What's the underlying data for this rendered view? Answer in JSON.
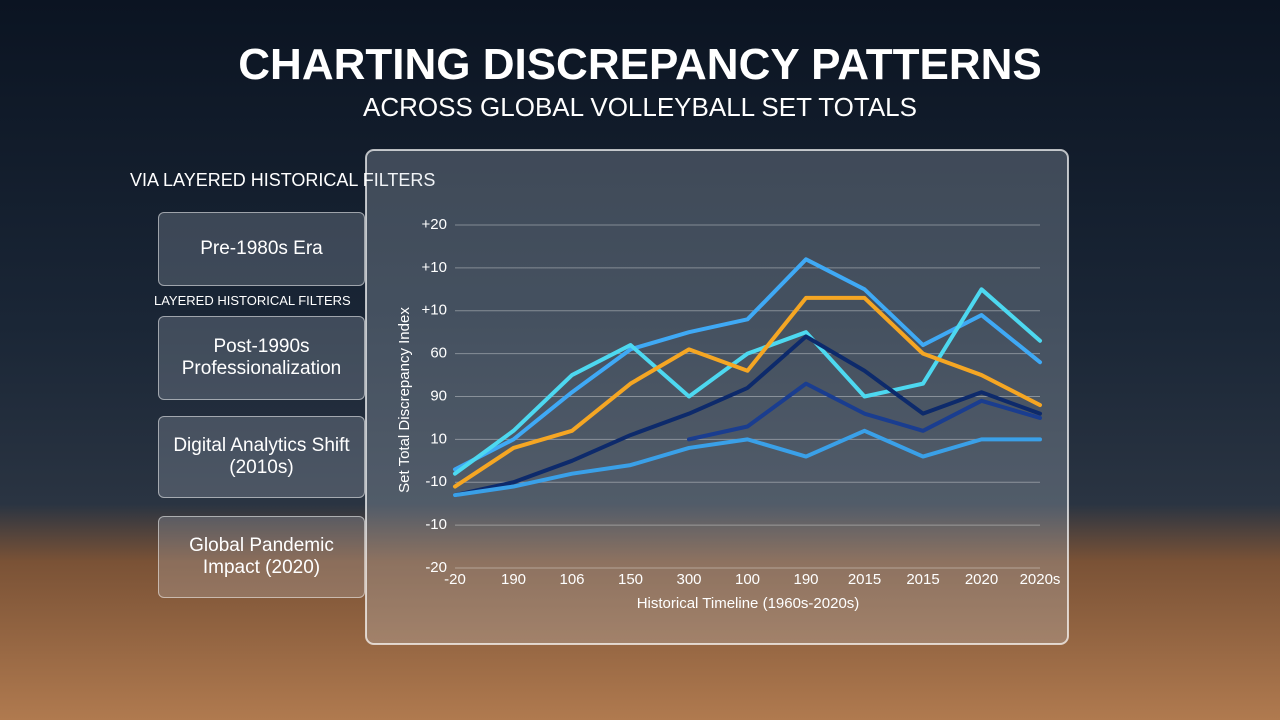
{
  "header": {
    "title": "CHARTING DISCREPANCY PATTERNS",
    "subtitle": "ACROSS GLOBAL VOLLEYBALL SET TOTALS"
  },
  "filters": {
    "heading": "VIA LAYERED HISTORICAL FILTERS",
    "subheading": "LAYERED HISTORICAL FILTERS",
    "items": [
      "Pre-1980s Era",
      "Post-1990s Professionalization",
      "Digital Analytics Shift (2010s)",
      "Global Pandemic Impact (2020)"
    ]
  },
  "chart_data": {
    "type": "line",
    "x_label": "Historical Timeline (1960s-2020s)",
    "y_label": "Set Total Discrepancy Index",
    "categories": [
      "-20",
      "190",
      "106",
      "150",
      "300",
      "100",
      "190",
      "2015",
      "2015",
      "2020",
      "2020s"
    ],
    "ylim": [
      0,
      8
    ],
    "yticks": [
      {
        "value": 0,
        "label": "-20"
      },
      {
        "value": 1,
        "label": "-10"
      },
      {
        "value": 2,
        "label": "-10"
      },
      {
        "value": 3,
        "label": "10"
      },
      {
        "value": 4,
        "label": "90"
      },
      {
        "value": 5,
        "label": "60"
      },
      {
        "value": 6,
        "label": "+10"
      },
      {
        "value": 7,
        "label": "+10"
      },
      {
        "value": 8,
        "label": "+20"
      }
    ],
    "grid": true,
    "series": [
      {
        "color": "#3fa9f5",
        "values": [
          2.3,
          3.0,
          4.1,
          5.1,
          5.5,
          5.8,
          7.2,
          6.5,
          5.2,
          5.9,
          4.8
        ]
      },
      {
        "color": "#4dd8f0",
        "values": [
          2.2,
          3.2,
          4.5,
          5.2,
          4.0,
          5.0,
          5.5,
          4.0,
          4.3,
          6.5,
          5.3
        ]
      },
      {
        "color": "#f5a623",
        "values": [
          1.9,
          2.8,
          3.2,
          4.3,
          5.1,
          4.6,
          6.3,
          6.3,
          5.0,
          4.5,
          3.8
        ]
      },
      {
        "color": "#0d2a6b",
        "values": [
          1.7,
          2.0,
          2.5,
          3.1,
          3.6,
          4.2,
          5.4,
          4.6,
          3.6,
          4.1,
          3.6
        ]
      },
      {
        "color": "#1a3d8f",
        "values": [
          null,
          null,
          null,
          null,
          3.0,
          3.3,
          4.3,
          3.6,
          3.2,
          3.9,
          3.5
        ]
      },
      {
        "color": "#3aa0e8",
        "values": [
          1.7,
          1.9,
          2.2,
          2.4,
          2.8,
          3.0,
          2.6,
          3.2,
          2.6,
          3.0,
          3.0
        ]
      }
    ]
  }
}
